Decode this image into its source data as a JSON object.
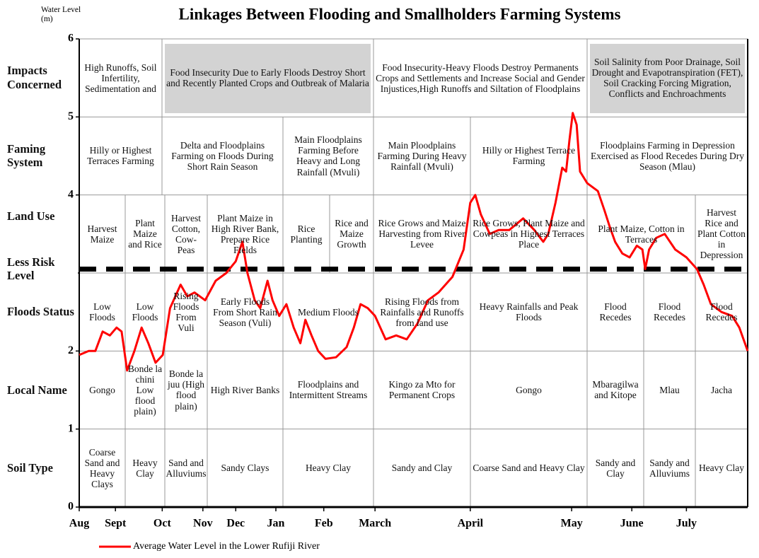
{
  "chart_data": {
    "type": "line",
    "title": "Linkages Between Flooding  and Smallholders Farming Systems",
    "y_label": "Water Level (m)",
    "ylim": [
      0,
      6
    ],
    "yticks": [
      0,
      1,
      2,
      3,
      4,
      5,
      6
    ],
    "xlim": [
      0,
      12
    ],
    "xticks": [
      {
        "value": 0,
        "label": "Aug"
      },
      {
        "value": 0.65,
        "label": "Sept"
      },
      {
        "value": 1.49,
        "label": "Oct"
      },
      {
        "value": 2.22,
        "label": "Nov"
      },
      {
        "value": 2.81,
        "label": "Dec"
      },
      {
        "value": 3.53,
        "label": "Jan"
      },
      {
        "value": 4.39,
        "label": "Feb"
      },
      {
        "value": 5.31,
        "label": "March"
      },
      {
        "value": 7.02,
        "label": "April"
      },
      {
        "value": 8.84,
        "label": "May"
      },
      {
        "value": 9.92,
        "label": "June"
      },
      {
        "value": 10.9,
        "label": "July"
      }
    ],
    "grid": true,
    "series": [
      {
        "name": "Average Water Level in the Lower Rufiji River",
        "color": "#ff0000",
        "x": [
          0,
          0.17,
          0.29,
          0.42,
          0.55,
          0.67,
          0.76,
          0.86,
          0.99,
          1.12,
          1.24,
          1.37,
          1.5,
          1.63,
          1.82,
          1.94,
          2.07,
          2.26,
          2.45,
          2.64,
          2.81,
          2.93,
          3.02,
          3.15,
          3.25,
          3.38,
          3.47,
          3.59,
          3.72,
          3.85,
          3.97,
          4.06,
          4.17,
          4.29,
          4.42,
          4.61,
          4.8,
          4.93,
          5.05,
          5.18,
          5.31,
          5.5,
          5.69,
          5.88,
          6.07,
          6.26,
          6.45,
          6.7,
          6.9,
          7.02,
          7.11,
          7.21,
          7.37,
          7.53,
          7.72,
          7.97,
          8.17,
          8.33,
          8.42,
          8.55,
          8.67,
          8.74,
          8.8,
          8.86,
          8.93,
          8.99,
          9.12,
          9.31,
          9.43,
          9.52,
          9.62,
          9.75,
          9.88,
          10.01,
          10.11,
          10.16,
          10.23,
          10.36,
          10.51,
          10.7,
          10.9,
          11.09,
          11.21,
          11.34,
          11.53,
          11.72,
          11.85,
          12
        ],
        "values": [
          1.95,
          2.0,
          2.0,
          2.25,
          2.2,
          2.3,
          2.25,
          1.75,
          2.0,
          2.3,
          2.1,
          1.85,
          1.95,
          2.55,
          2.85,
          2.7,
          2.75,
          2.65,
          2.9,
          3.0,
          3.15,
          3.4,
          3.0,
          2.65,
          2.55,
          2.9,
          2.65,
          2.45,
          2.6,
          2.3,
          2.1,
          2.4,
          2.2,
          2.0,
          1.9,
          1.92,
          2.05,
          2.3,
          2.6,
          2.55,
          2.45,
          2.15,
          2.2,
          2.15,
          2.35,
          2.65,
          2.75,
          2.95,
          3.3,
          3.9,
          4.0,
          3.75,
          3.5,
          3.55,
          3.55,
          3.7,
          3.55,
          3.4,
          3.5,
          3.9,
          4.35,
          4.3,
          4.7,
          5.05,
          4.9,
          4.3,
          4.15,
          4.05,
          3.8,
          3.6,
          3.4,
          3.25,
          3.2,
          3.35,
          3.3,
          3.05,
          3.3,
          3.45,
          3.5,
          3.3,
          3.2,
          3.05,
          2.85,
          2.6,
          2.5,
          2.45,
          2.3,
          2.0
        ]
      }
    ],
    "risk_level": {
      "label": "Less Risk Level",
      "value": 3.05
    },
    "rows": [
      {
        "label": "Impacts Concerned",
        "cells": [
          {
            "text": "High Runoffs, Soil Infertility, Sedimentation and"
          },
          {
            "text": "Food Insecurity Due to Early Floods Destroy Short and Recently Planted Crops and Outbreak of Malaria",
            "shaded": true
          },
          {
            "text": "Food Insecurity-Heavy Floods Destroy Permanents Crops and Settlements and Increase Social and Gender Injustices,High Runoffs and Siltation of Floodplains"
          },
          {
            "text": "Soil Salinity from Poor Drainage, Soil Drought and Evapotranspiration (FET), Soil Cracking Forcing Migration, Conflicts and Enchroachments",
            "shaded": true
          }
        ]
      },
      {
        "label": "Faming System",
        "cells": [
          {
            "text": "Hilly or Highest Terraces Farming"
          },
          {
            "text": "Delta and Floodplains Farming on Floods During Short Rain Season"
          },
          {
            "text": "Main Floodplains Farming Before Heavy and Long Rainfall (Mvuli)"
          },
          {
            "text": "Main Ploodplains Farming During Heavy Rainfall (Mvuli)"
          },
          {
            "text": "Hilly or Highest Terrace Farming"
          },
          {
            "text": "Floodplains Farming in Depression Exercised as Flood Recedes During Dry Season (Mlau)"
          }
        ]
      },
      {
        "label": "Land Use",
        "cells": [
          {
            "text": "Harvest Maize"
          },
          {
            "text": "Plant Maize and Rice"
          },
          {
            "text": "Harvest Cotton, Cow-Peas"
          },
          {
            "text": "Plant Maize in High River Bank, Prepare Rice Fields"
          },
          {
            "text": "Rice Planting"
          },
          {
            "text": "Rice and Maize Growth"
          },
          {
            "text": "Rice Grows and Maize Harvesting from River Levee"
          },
          {
            "text": "Rice Grows, Plant Maize and Cowpeas in Highest Terraces Place"
          },
          {
            "text": "Plant Maize, Cotton in Terraces"
          },
          {
            "text": "Harvest Rice and Plant Cotton in Depression"
          }
        ]
      },
      {
        "label": "Floods Status",
        "cells": [
          {
            "text": "Low Floods"
          },
          {
            "text": "Low Floods"
          },
          {
            "text": "Rising Floods From Vuli"
          },
          {
            "text": "Early Floods From Short Rain Season (Vuli)"
          },
          {
            "text": "Medium Floods"
          },
          {
            "text": "Rising Floods from Rainfalls and Runoffs from land use"
          },
          {
            "text": "Heavy Rainfalls and Peak Floods"
          },
          {
            "text": "Flood Recedes"
          },
          {
            "text": "Flood Recedes"
          },
          {
            "text": "Flood Recedes"
          }
        ]
      },
      {
        "label": "Local Name",
        "cells": [
          {
            "text": "Gongo"
          },
          {
            "text": "Bonde la chini Low flood plain)"
          },
          {
            "text": "Bonde la juu (High flood plain)"
          },
          {
            "text": "High River Banks"
          },
          {
            "text": "Floodplains and Intermittent Streams"
          },
          {
            "text": "Kingo za Mto for Permanent Crops"
          },
          {
            "text": "Gongo"
          },
          {
            "text": "Mbaragilwa and Kitope"
          },
          {
            "text": "Mlau"
          },
          {
            "text": "Jacha"
          }
        ]
      },
      {
        "label": "Soil Type",
        "cells": [
          {
            "text": "Coarse Sand and Heavy Clays"
          },
          {
            "text": "Heavy Clay"
          },
          {
            "text": "Sand and Alluviums"
          },
          {
            "text": "Sandy Clays"
          },
          {
            "text": "Heavy Clay"
          },
          {
            "text": "Sandy and Clay"
          },
          {
            "text": "Coarse Sand and Heavy Clay"
          },
          {
            "text": "Sandy and Clay"
          },
          {
            "text": "Sandy and Alluviums"
          },
          {
            "text": "Heavy Clay"
          }
        ]
      }
    ]
  }
}
